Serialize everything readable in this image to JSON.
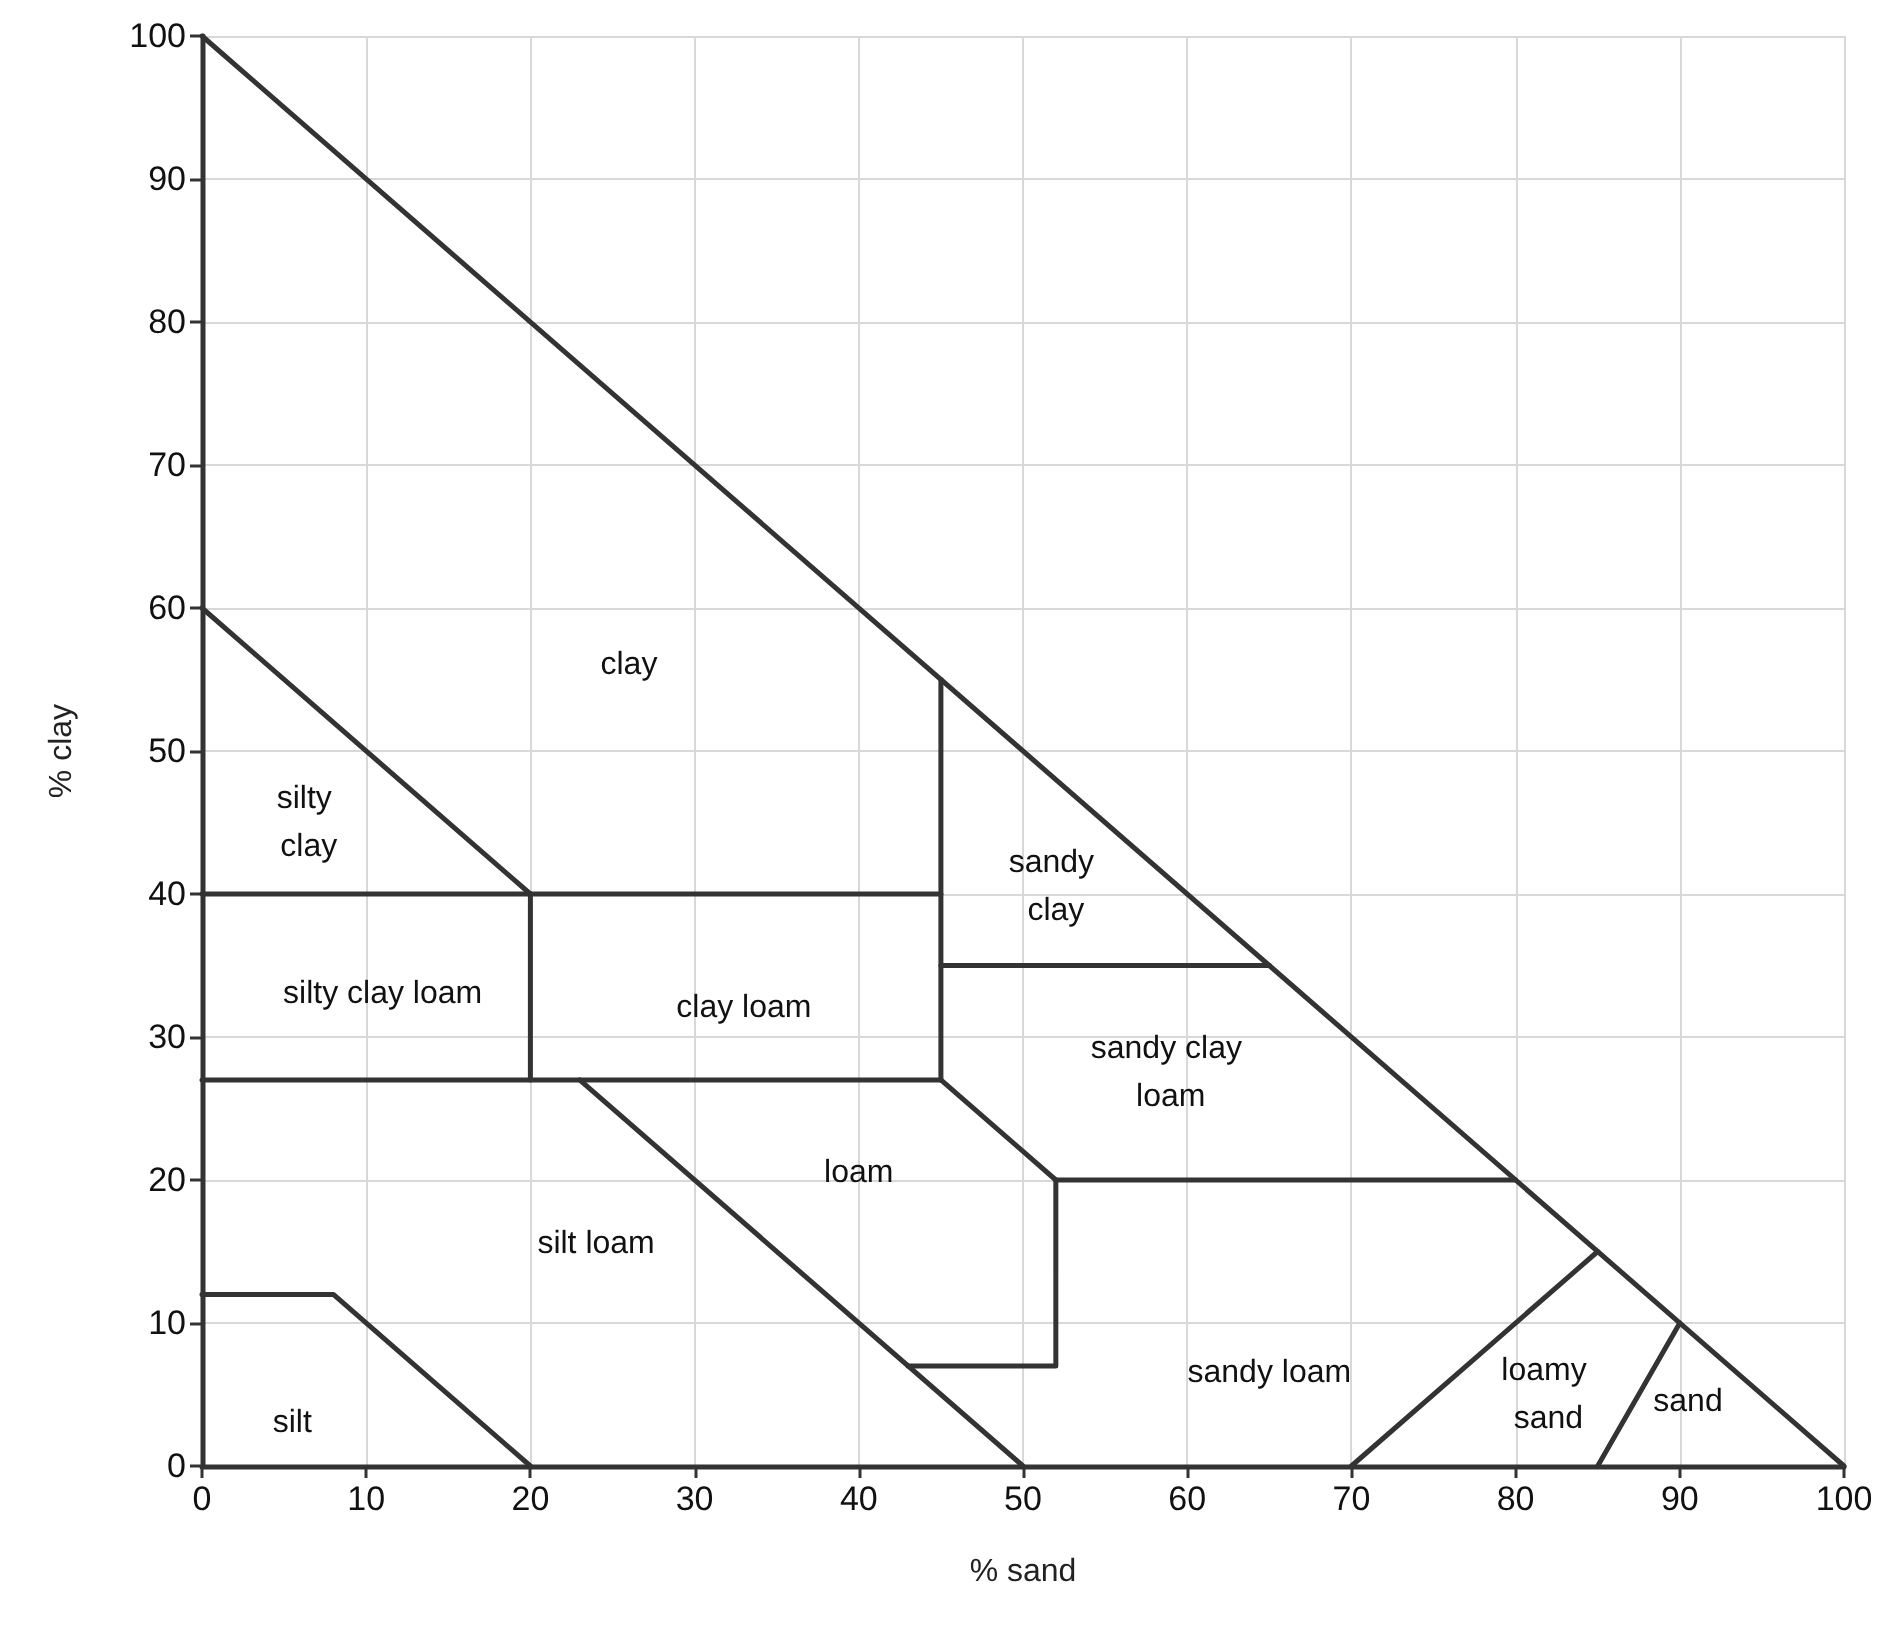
{
  "chart_data": {
    "type": "line",
    "xlabel": "% sand",
    "ylabel": "% clay",
    "xlim": [
      0,
      100
    ],
    "ylim": [
      0,
      100
    ],
    "xticks": [
      0,
      10,
      20,
      30,
      40,
      50,
      60,
      70,
      80,
      90,
      100
    ],
    "yticks": [
      0,
      10,
      20,
      30,
      40,
      50,
      60,
      70,
      80,
      90,
      100
    ],
    "grid": true,
    "marker": "none",
    "line_style": "solid",
    "series": [
      {
        "color": "#333333",
        "x": [
          0,
          100
        ],
        "values": [
          100,
          0
        ]
      },
      {
        "color": "#333333",
        "x": [
          0,
          20
        ],
        "values": [
          60,
          40
        ]
      },
      {
        "color": "#333333",
        "x": [
          0,
          45
        ],
        "values": [
          40,
          40
        ]
      },
      {
        "color": "#333333",
        "x": [
          20,
          20
        ],
        "values": [
          40,
          27
        ]
      },
      {
        "color": "#333333",
        "x": [
          0,
          45
        ],
        "values": [
          27,
          27
        ]
      },
      {
        "color": "#333333",
        "x": [
          45,
          45
        ],
        "values": [
          27,
          55
        ]
      },
      {
        "color": "#333333",
        "x": [
          45,
          65
        ],
        "values": [
          35,
          35
        ]
      },
      {
        "color": "#333333",
        "x": [
          45,
          52
        ],
        "values": [
          27,
          20
        ]
      },
      {
        "color": "#333333",
        "x": [
          52,
          80
        ],
        "values": [
          20,
          20
        ]
      },
      {
        "color": "#333333",
        "x": [
          52,
          52,
          43
        ],
        "values": [
          20,
          7,
          7
        ]
      },
      {
        "color": "#333333",
        "x": [
          23,
          50
        ],
        "values": [
          27,
          0
        ]
      },
      {
        "color": "#333333",
        "x": [
          0,
          8,
          20
        ],
        "values": [
          12,
          12,
          0
        ]
      },
      {
        "color": "#333333",
        "x": [
          70,
          85
        ],
        "values": [
          0,
          15
        ]
      },
      {
        "color": "#333333",
        "x": [
          85,
          90
        ],
        "values": [
          0,
          10
        ]
      }
    ],
    "annotations": [
      "clay",
      "silty clay",
      "sandy clay",
      "silty clay loam",
      "clay loam",
      "sandy clay loam",
      "loam",
      "silt loam",
      "silt",
      "sandy loam",
      "loamy sand",
      "sand"
    ]
  }
}
